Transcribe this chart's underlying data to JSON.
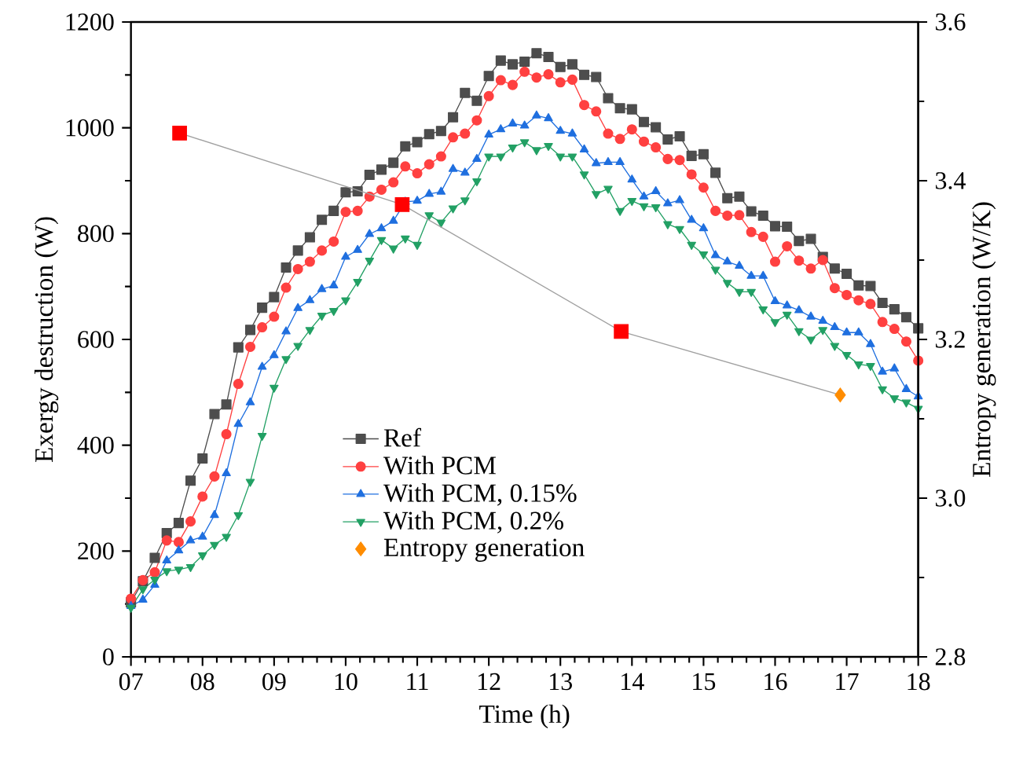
{
  "chart_data": {
    "type": "line",
    "xlabel": "Time (h)",
    "ylabel": "Exergy destruction (W)",
    "y2label": "Entropy generation (W/K)",
    "x": [
      7,
      7.167,
      7.333,
      7.5,
      7.667,
      7.833,
      8,
      8.167,
      8.333,
      8.5,
      8.667,
      8.833,
      9,
      9.167,
      9.333,
      9.5,
      9.667,
      9.833,
      10,
      10.167,
      10.333,
      10.5,
      10.667,
      10.833,
      11,
      11.167,
      11.333,
      11.5,
      11.667,
      11.833,
      12,
      12.167,
      12.333,
      12.5,
      12.667,
      12.833,
      13,
      13.167,
      13.333,
      13.5,
      13.667,
      13.833,
      14,
      14.167,
      14.333,
      14.5,
      14.667,
      14.833,
      15,
      15.167,
      15.333,
      15.5,
      15.667,
      15.833,
      16,
      16.167,
      16.333,
      16.5,
      16.667,
      16.833,
      17,
      17.167,
      17.333,
      17.5,
      17.667,
      17.833,
      18
    ],
    "series": [
      {
        "name": "Ref",
        "color": "#4d4d4d",
        "marker": "square",
        "values": [
          103,
          143,
          187,
          234,
          253,
          333,
          375,
          459,
          477,
          585,
          618,
          660,
          680,
          736,
          768,
          793,
          826,
          843,
          878,
          880,
          911,
          921,
          934,
          965,
          973,
          988,
          994,
          1020,
          1066,
          1051,
          1098,
          1127,
          1120,
          1125,
          1141,
          1134,
          1115,
          1120,
          1100,
          1096,
          1056,
          1037,
          1035,
          1011,
          1001,
          978,
          984,
          947,
          950,
          915,
          867,
          870,
          842,
          834,
          814,
          813,
          786,
          790,
          756,
          734,
          724,
          702,
          701,
          669,
          657,
          642,
          621
        ]
      },
      {
        "name": "With PCM",
        "color": "#ff4040",
        "marker": "circle",
        "values": [
          110,
          145,
          160,
          220,
          217,
          256,
          303,
          341,
          421,
          516,
          586,
          623,
          643,
          698,
          733,
          747,
          768,
          785,
          841,
          843,
          870,
          883,
          897,
          927,
          914,
          931,
          946,
          982,
          989,
          1014,
          1060,
          1090,
          1081,
          1106,
          1095,
          1101,
          1086,
          1091,
          1043,
          1031,
          989,
          979,
          997,
          974,
          963,
          941,
          939,
          912,
          887,
          843,
          834,
          835,
          803,
          794,
          747,
          776,
          749,
          734,
          750,
          697,
          684,
          674,
          667,
          633,
          620,
          596,
          560
        ]
      },
      {
        "name": "With PCM, 0.15%",
        "color": "#1f6fdf",
        "marker": "triangle",
        "values": [
          96,
          108,
          136,
          182,
          201,
          220,
          227,
          268,
          347,
          440,
          481,
          548,
          570,
          615,
          659,
          674,
          695,
          702,
          756,
          769,
          799,
          810,
          824,
          860,
          862,
          875,
          879,
          922,
          915,
          941,
          987,
          997,
          1008,
          1004,
          1023,
          1018,
          994,
          989,
          959,
          933,
          935,
          935,
          902,
          870,
          880,
          857,
          863,
          826,
          810,
          759,
          747,
          739,
          720,
          720,
          672,
          664,
          655,
          643,
          635,
          623,
          613,
          613,
          591,
          539,
          545,
          506,
          492
        ]
      },
      {
        "name": "With PCM, 0.2%",
        "color": "#22a064",
        "marker": "triangle-down",
        "values": [
          93,
          128,
          146,
          162,
          165,
          170,
          192,
          212,
          227,
          268,
          331,
          418,
          509,
          563,
          588,
          618,
          645,
          654,
          674,
          709,
          749,
          788,
          772,
          791,
          779,
          835,
          821,
          848,
          863,
          899,
          946,
          946,
          963,
          973,
          958,
          966,
          946,
          946,
          912,
          875,
          885,
          843,
          862,
          852,
          850,
          818,
          809,
          779,
          761,
          732,
          707,
          690,
          690,
          657,
          633,
          647,
          616,
          600,
          618,
          588,
          571,
          553,
          550,
          506,
          489,
          481,
          469
        ]
      },
      {
        "type": "line",
        "axis": "y2",
        "color": "#a0a0a0",
        "marker": "none",
        "x": [
          7.68,
          10.79,
          13.85,
          16.91
        ],
        "values": [
          3.46,
          3.37,
          3.21,
          3.13
        ]
      },
      {
        "type": "scatter",
        "axis": "y2",
        "color": "#ff0000",
        "marker": "square",
        "x": [
          7.68,
          10.79,
          13.85
        ],
        "values": [
          3.46,
          3.37,
          3.21
        ]
      },
      {
        "type": "scatter",
        "name": "Entropy generation",
        "axis": "y2",
        "color": "#ff8c00",
        "marker": "diamond",
        "x": [
          16.91
        ],
        "values": [
          3.13
        ]
      }
    ],
    "xlim": [
      7,
      18
    ],
    "xticks": [
      {
        "value": 7,
        "label": "07"
      },
      {
        "value": 8,
        "label": "08"
      },
      {
        "value": 9,
        "label": "09"
      },
      10,
      11,
      12,
      13,
      14,
      15,
      16,
      17,
      18
    ],
    "ylim": [
      0,
      1200
    ],
    "yticks": [
      0,
      200,
      400,
      600,
      800,
      1000,
      1200
    ],
    "y2lim": [
      2.8,
      3.6
    ],
    "y2ticks": [
      2.8,
      {
        "value": 3,
        "label": "3.0"
      },
      3.2,
      3.4,
      3.6
    ],
    "grid": false,
    "legend": "bottom left"
  }
}
